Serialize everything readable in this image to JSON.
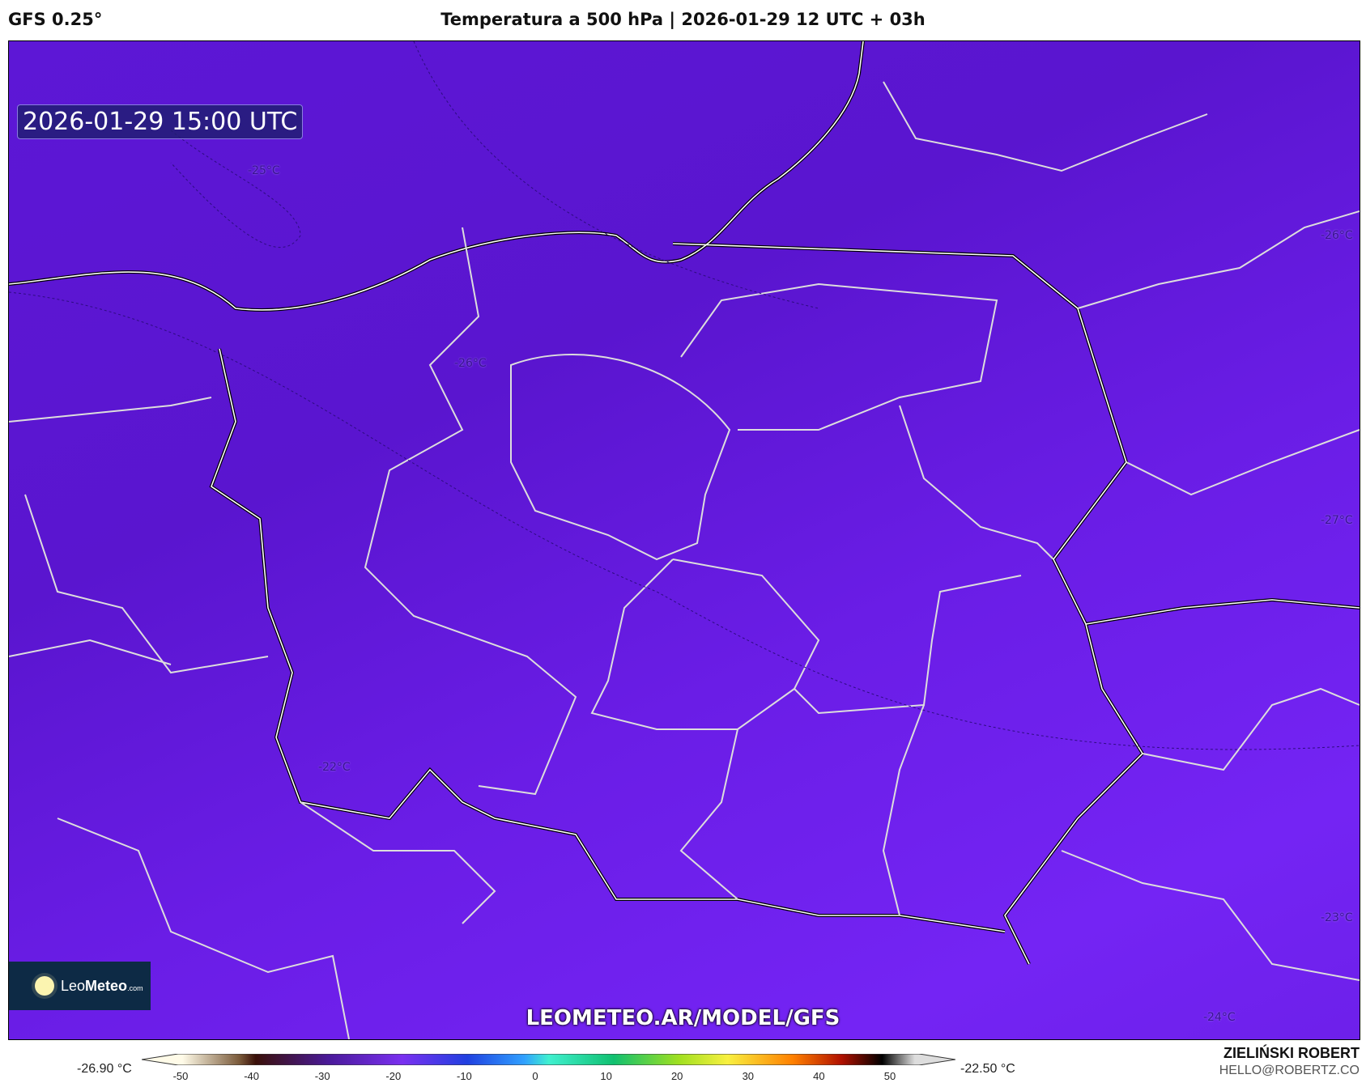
{
  "header": {
    "model": "GFS 0.25°",
    "title": "Temperatura a 500 hPa | 2026-01-29 12 UTC + 03h"
  },
  "map": {
    "valid_time": "2026-01-29 15:00 UTC",
    "contour_labels": [
      "-25°C",
      "-26°C",
      "-26°C",
      "-27°C",
      "-22°C",
      "-23°C",
      "-24°C"
    ],
    "colors": {
      "fill_dark": "#5a15cf",
      "fill_light": "#7424f4",
      "borders": "#ffffff",
      "coast": "#000000"
    }
  },
  "logo": {
    "brand_light": "Leo",
    "brand_bold": "Meteo",
    "brand_suffix": ".com"
  },
  "watermark": "LEOMETEO.AR/MODEL/GFS",
  "colorbar": {
    "min_label": "-26.90 °C",
    "max_label": "-22.50 °C",
    "ticks": [
      "-50",
      "-40",
      "-30",
      "-20",
      "-10",
      "0",
      "10",
      "20",
      "30",
      "40",
      "50"
    ]
  },
  "credit": {
    "author": "ZIELIŃSKI ROBERT",
    "email": "HELLO@ROBERTZ.CO"
  }
}
